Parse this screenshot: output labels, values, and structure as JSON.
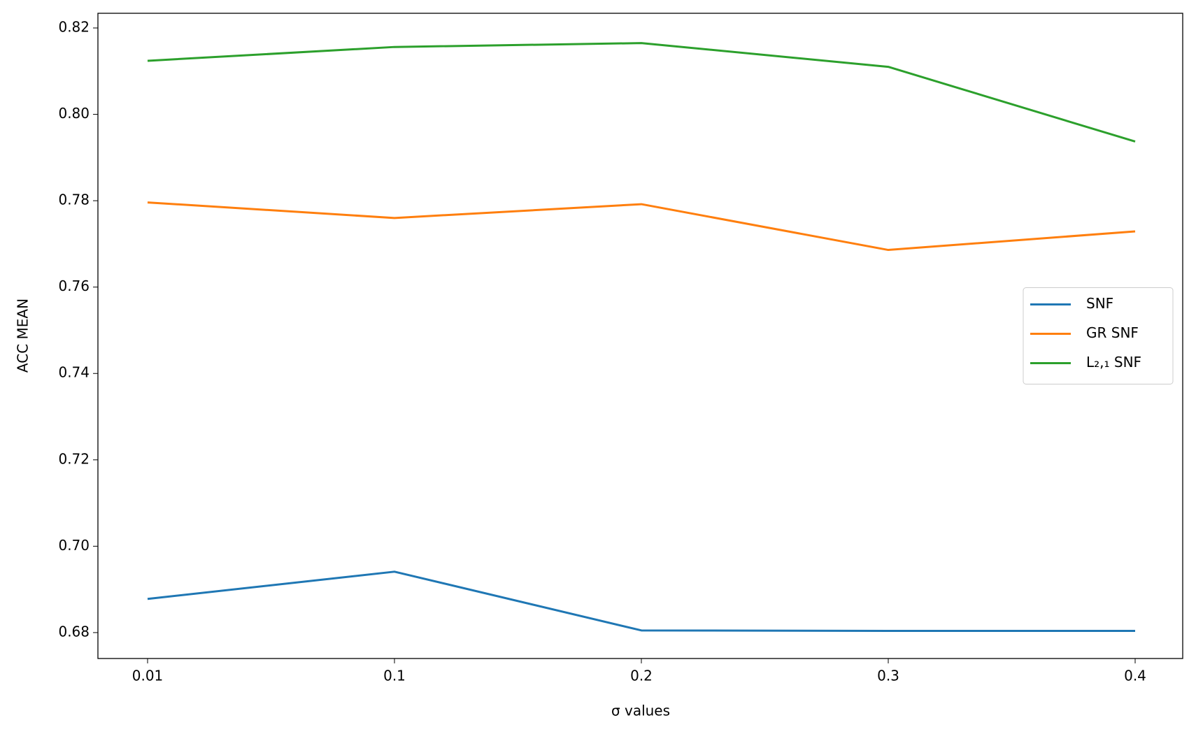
{
  "chart_data": {
    "type": "line",
    "x_label": "σ values",
    "y_label": "ACC MEAN",
    "categories": [
      "0.01",
      "0.1",
      "0.2",
      "0.3",
      "0.4"
    ],
    "series": [
      {
        "name": "SNF",
        "color": "#1f77b4",
        "values": [
          0.6878,
          0.6941,
          0.6805,
          0.6804,
          0.6804
        ]
      },
      {
        "name": "GR SNF",
        "color": "#ff7f0e",
        "values": [
          0.7796,
          0.776,
          0.7792,
          0.7686,
          0.7729
        ]
      },
      {
        "name": "L₂,₁ SNF",
        "color": "#2ca02c",
        "values": [
          0.8124,
          0.8156,
          0.8165,
          0.811,
          0.7937
        ]
      }
    ],
    "ylim": [
      0.674,
      0.8234
    ],
    "yticks": [
      {
        "value": 0.68,
        "label": "0.68"
      },
      {
        "value": 0.7,
        "label": "0.70"
      },
      {
        "value": 0.72,
        "label": "0.72"
      },
      {
        "value": 0.74,
        "label": "0.74"
      },
      {
        "value": 0.76,
        "label": "0.76"
      },
      {
        "value": 0.78,
        "label": "0.78"
      },
      {
        "value": 0.8,
        "label": "0.80"
      },
      {
        "value": 0.82,
        "label": "0.82"
      }
    ],
    "legend": "center right",
    "grid": false
  }
}
